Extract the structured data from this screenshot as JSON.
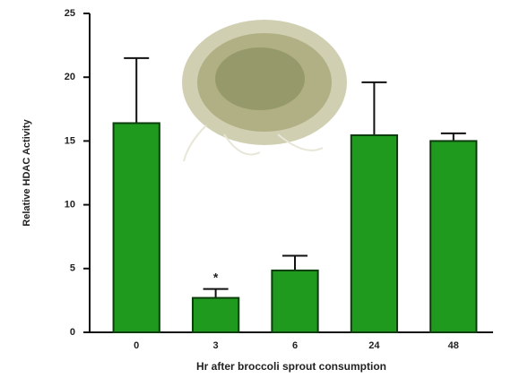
{
  "chart_data": {
    "type": "bar",
    "ylabel": "Relative HDAC Activity",
    "xlabel": "Hr after broccoli sprout consumption",
    "categories": [
      "0",
      "3",
      "6",
      "24",
      "48"
    ],
    "values": [
      16.4,
      2.7,
      4.85,
      15.45,
      15.0
    ],
    "errors": [
      5.1,
      0.7,
      1.15,
      4.15,
      0.6
    ],
    "annotations": [
      {
        "category": 1,
        "text": "*"
      }
    ],
    "color": "#1f9a1f",
    "ylim": [
      0,
      25
    ],
    "yticks": [
      0,
      5,
      10,
      15,
      20,
      25
    ],
    "grid": false
  }
}
